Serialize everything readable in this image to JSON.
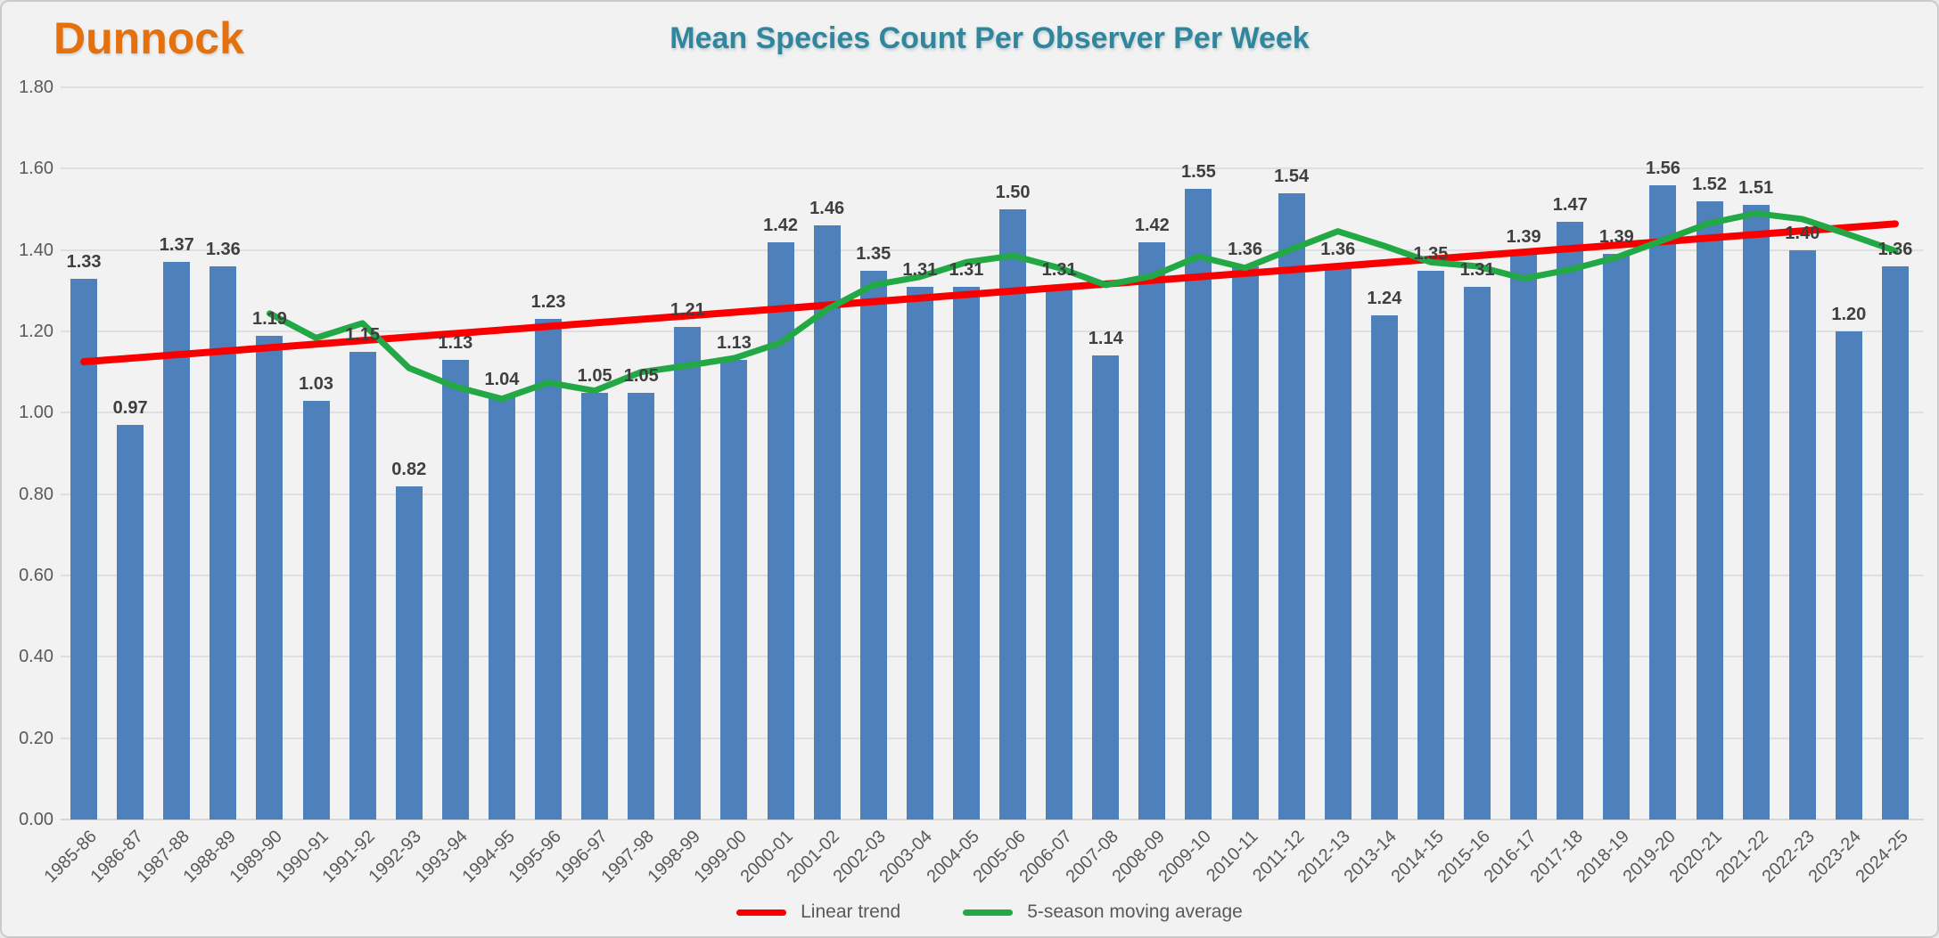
{
  "header": {
    "species_title": "Dunnock",
    "species_title_color": "#E4710E",
    "chart_title": "Mean Species Count Per Observer Per Week",
    "chart_title_color": "#31859C"
  },
  "legend": {
    "items": [
      {
        "label": "Linear trend",
        "color": "#F80000",
        "series": "linear-trend"
      },
      {
        "label": "5-season moving average",
        "color": "#22A845",
        "series": "moving-average"
      }
    ]
  },
  "colors": {
    "bar": "#4E81BC",
    "trend_line": "#F80000",
    "moving_average_line": "#22A845",
    "value_label": "#3F3F3F",
    "axis_text": "#595959",
    "gridline": "#DFDFDF",
    "background": "#F1F2F1"
  },
  "chart_data": {
    "type": "bar",
    "title": "Mean Species Count Per Observer Per Week",
    "categories": [
      "1985-86",
      "1986-87",
      "1987-88",
      "1988-89",
      "1989-90",
      "1990-91",
      "1991-92",
      "1992-93",
      "1993-94",
      "1994-95",
      "1995-96",
      "1996-97",
      "1997-98",
      "1998-99",
      "1999-00",
      "2000-01",
      "2001-02",
      "2002-03",
      "2003-04",
      "2004-05",
      "2005-06",
      "2006-07",
      "2007-08",
      "2008-09",
      "2009-10",
      "2010-11",
      "2011-12",
      "2012-13",
      "2013-14",
      "2014-15",
      "2015-16",
      "2016-17",
      "2017-18",
      "2018-19",
      "2019-20",
      "2020-21",
      "2021-22",
      "2022-23",
      "2023-24",
      "2024-25"
    ],
    "series": [
      {
        "name": "Mean species count per observer per week",
        "type": "bar",
        "color": "#4E81BC",
        "data_labels": true,
        "label_format": "0.00",
        "values": [
          1.33,
          0.97,
          1.37,
          1.36,
          1.19,
          1.03,
          1.15,
          0.82,
          1.13,
          1.04,
          1.23,
          1.05,
          1.05,
          1.21,
          1.13,
          1.42,
          1.46,
          1.35,
          1.31,
          1.31,
          1.5,
          1.31,
          1.14,
          1.42,
          1.55,
          1.36,
          1.54,
          1.36,
          1.24,
          1.35,
          1.31,
          1.39,
          1.47,
          1.39,
          1.56,
          1.52,
          1.51,
          1.4,
          1.2,
          1.36
        ]
      },
      {
        "name": "Linear trend",
        "type": "line",
        "color": "#F80000",
        "derived": "least-squares-linear-fit-of-bar-values"
      },
      {
        "name": "5-season moving average",
        "type": "line",
        "color": "#22A845",
        "derived": "trailing-moving-average",
        "window": 5
      }
    ],
    "y_axis": {
      "min": 0,
      "max": 1.8,
      "tick_step": 0.2,
      "tick_format": "0.00"
    },
    "x_axis": {
      "label_rotation_deg": 45
    },
    "grid": true,
    "legend_position": "bottom"
  }
}
